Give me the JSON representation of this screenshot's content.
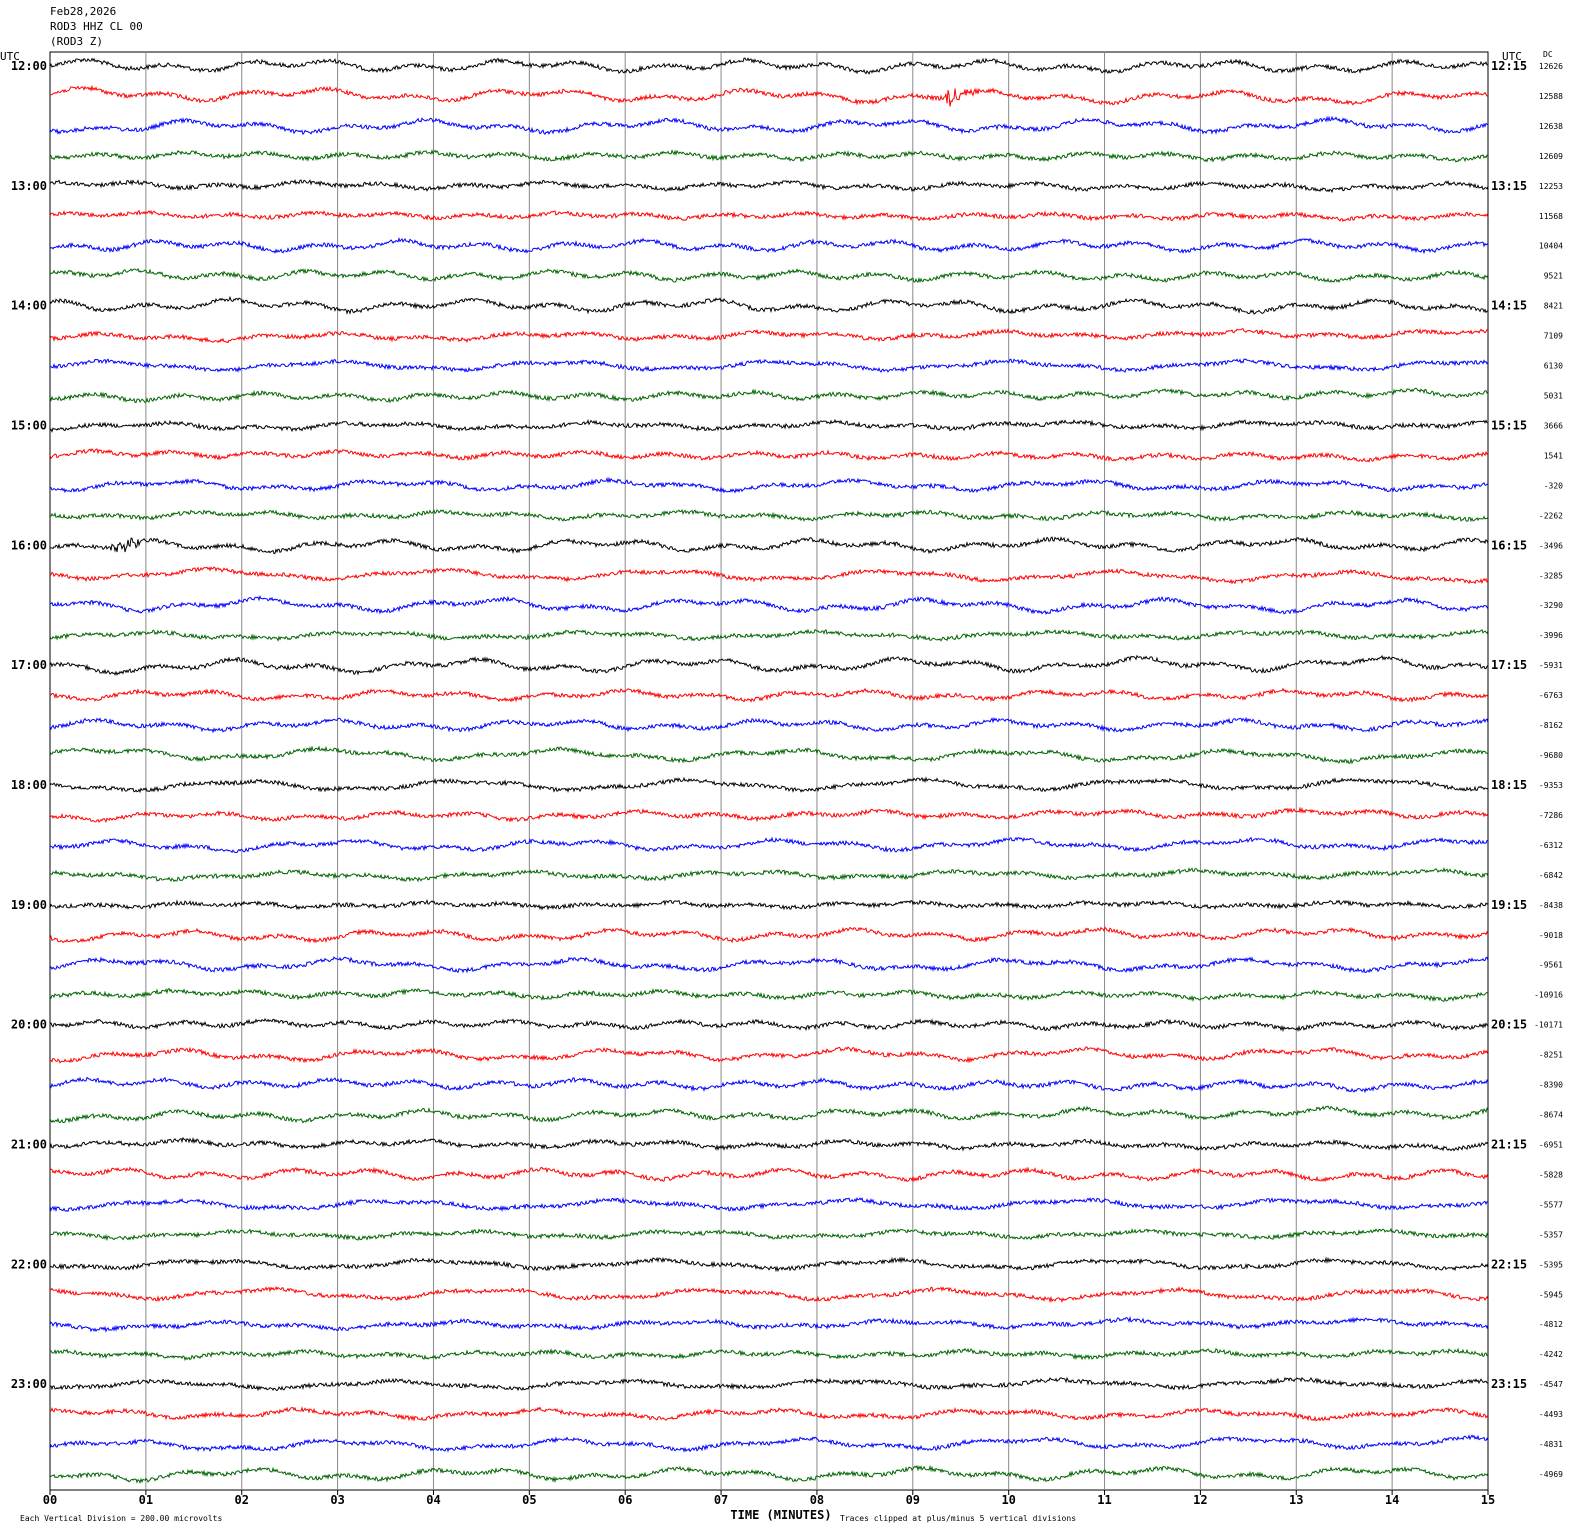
{
  "header": {
    "date": "Feb28,2026",
    "station": "ROD3 HHZ CL 00",
    "component": "(ROD3 Z)"
  },
  "left_axis": {
    "title": "UTC",
    "labels": [
      "12:00",
      "13:00",
      "14:00",
      "15:00",
      "16:00",
      "17:00",
      "18:00",
      "19:00",
      "20:00",
      "21:00",
      "22:00",
      "23:00"
    ]
  },
  "right_axis": {
    "title": "UTC",
    "labels": [
      "12:15",
      "13:15",
      "14:15",
      "15:15",
      "16:15",
      "17:15",
      "18:15",
      "19:15",
      "20:15",
      "21:15",
      "22:15",
      "23:15"
    ]
  },
  "dc": {
    "title": "DC",
    "values": [
      12626,
      12588,
      12638,
      12609,
      12253,
      11568,
      10404,
      9521,
      8421,
      7109,
      6130,
      5031,
      3666,
      1541,
      -320,
      -2262,
      -3496,
      -3285,
      -3290,
      -3996,
      -5931,
      -6763,
      -8162,
      -9680,
      -9353,
      -7286,
      -6312,
      -6842,
      -8438,
      -9018,
      -9561,
      -10916,
      -10171,
      -8251,
      -8390,
      -8674,
      -6951,
      -5828,
      -5577,
      -5357,
      -5395,
      -5945,
      -4812,
      -4242,
      -4547,
      -4493,
      -4831,
      -4969
    ]
  },
  "x_axis": {
    "title": "TIME (MINUTES)",
    "ticks": [
      "00",
      "01",
      "02",
      "03",
      "04",
      "05",
      "06",
      "07",
      "08",
      "09",
      "10",
      "11",
      "12",
      "13",
      "14",
      "15"
    ]
  },
  "footer": {
    "scale_note": "Each Vertical Division =  200.00 microvolts",
    "clip_note": "Traces clipped at plus/minus 5 vertical divisions"
  },
  "trace_colors": [
    "#000000",
    "#ff0000",
    "#0000ff",
    "#006400"
  ]
}
